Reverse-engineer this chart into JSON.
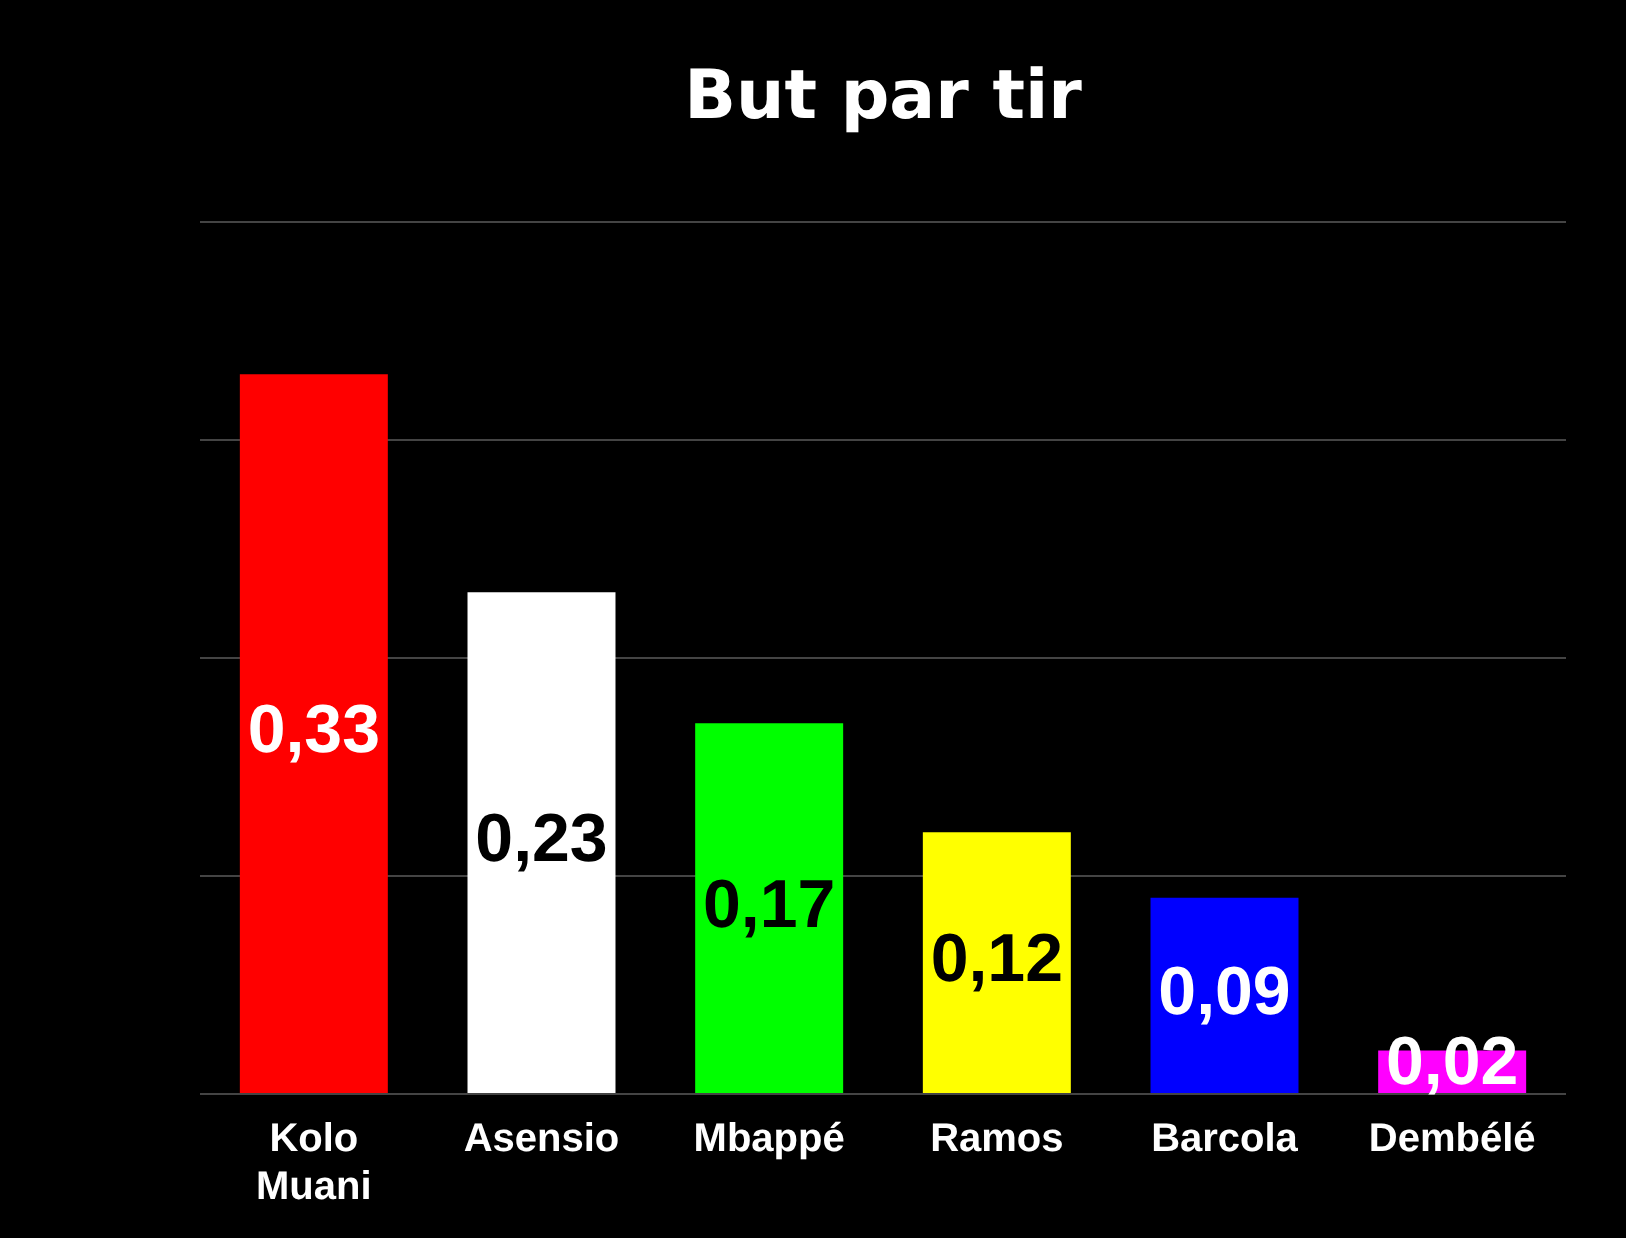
{
  "chart_data": {
    "type": "bar",
    "title": "But par tir",
    "categories": [
      "Kolo Muani",
      "Asensio",
      "Mbappé",
      "Ramos",
      "Barcola",
      "Dembélé"
    ],
    "values": [
      0.33,
      0.23,
      0.17,
      0.12,
      0.09,
      0.02
    ],
    "colors": [
      "#ff0000",
      "#ffffff",
      "#00ff00",
      "#ffff00",
      "#0000ff",
      "#ff00ff"
    ],
    "value_labels": [
      "0,33",
      "0,23",
      "0,17",
      "0,12",
      "0,09",
      "0,02"
    ],
    "ylim": [
      0,
      0.4
    ],
    "yticks": [
      {
        "value": 0,
        "label": null
      },
      {
        "value": 0.1,
        "label": null
      },
      {
        "value": 0.2,
        "label": null
      },
      {
        "value": 0.3,
        "label": null
      },
      {
        "value": 0.4,
        "label": null
      }
    ],
    "grid": "y",
    "tick_labels": "x",
    "legend": false
  }
}
